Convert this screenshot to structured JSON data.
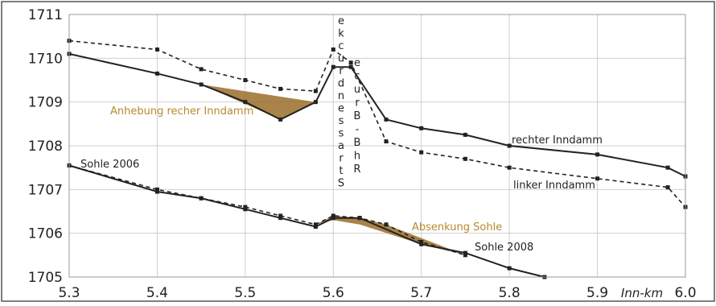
{
  "chart_data": {
    "type": "line",
    "xlabel": "Inn-km",
    "ylabel": "",
    "xlim": [
      5.3,
      6.0
    ],
    "ylim": [
      1705,
      1711
    ],
    "x_ticks": [
      "5.3",
      "5.4",
      "5.5",
      "5.6",
      "5.7",
      "5.8",
      "5.9",
      "6.0"
    ],
    "y_ticks": [
      "1705",
      "1706",
      "1707",
      "1708",
      "1709",
      "1710",
      "1711"
    ],
    "grid": true,
    "series": [
      {
        "name": "rechter Inndamm",
        "style": "solid",
        "color": "#222222",
        "points": [
          [
            5.3,
            1710.1
          ],
          [
            5.4,
            1709.65
          ],
          [
            5.45,
            1709.4
          ],
          [
            5.5,
            1709.0
          ],
          [
            5.54,
            1708.6
          ],
          [
            5.58,
            1709.0
          ],
          [
            5.6,
            1709.8
          ],
          [
            5.62,
            1709.8
          ],
          [
            5.66,
            1708.6
          ],
          [
            5.7,
            1708.4
          ],
          [
            5.75,
            1708.25
          ],
          [
            5.8,
            1708.0
          ],
          [
            5.9,
            1707.8
          ],
          [
            5.98,
            1707.5
          ],
          [
            6.0,
            1707.3
          ]
        ]
      },
      {
        "name": "linker Inndamm",
        "style": "dashed",
        "color": "#222222",
        "points": [
          [
            5.3,
            1710.4
          ],
          [
            5.4,
            1710.2
          ],
          [
            5.45,
            1709.75
          ],
          [
            5.5,
            1709.5
          ],
          [
            5.54,
            1709.3
          ],
          [
            5.58,
            1709.25
          ],
          [
            5.6,
            1710.2
          ],
          [
            5.62,
            1709.9
          ],
          [
            5.66,
            1708.1
          ],
          [
            5.7,
            1707.85
          ],
          [
            5.75,
            1707.7
          ],
          [
            5.8,
            1707.5
          ],
          [
            5.9,
            1707.25
          ],
          [
            5.98,
            1707.05
          ],
          [
            6.0,
            1706.6
          ]
        ]
      },
      {
        "name": "Sohle 2006",
        "style": "dashed",
        "color": "#222222",
        "points": [
          [
            5.3,
            1707.55
          ],
          [
            5.4,
            1707.0
          ],
          [
            5.45,
            1706.8
          ],
          [
            5.5,
            1706.6
          ],
          [
            5.54,
            1706.4
          ],
          [
            5.58,
            1706.2
          ],
          [
            5.6,
            1706.4
          ],
          [
            5.63,
            1706.35
          ],
          [
            5.66,
            1706.2
          ],
          [
            5.7,
            1705.8
          ],
          [
            5.75,
            1705.5
          ]
        ]
      },
      {
        "name": "Sohle 2008",
        "style": "solid",
        "color": "#222222",
        "points": [
          [
            5.3,
            1707.55
          ],
          [
            5.4,
            1706.95
          ],
          [
            5.45,
            1706.8
          ],
          [
            5.5,
            1706.55
          ],
          [
            5.54,
            1706.35
          ],
          [
            5.58,
            1706.15
          ],
          [
            5.6,
            1706.35
          ],
          [
            5.63,
            1706.35
          ],
          [
            5.7,
            1705.75
          ],
          [
            5.75,
            1705.55
          ],
          [
            5.8,
            1705.2
          ],
          [
            5.84,
            1705.0
          ]
        ]
      }
    ],
    "fills": [
      {
        "color": "#9a6d2a",
        "points": [
          [
            5.45,
            1709.4
          ],
          [
            5.58,
            1709.0
          ],
          [
            5.54,
            1708.6
          ]
        ]
      },
      {
        "color": "#9a6d2a",
        "points": [
          [
            5.58,
            1706.2
          ],
          [
            5.6,
            1706.4
          ],
          [
            5.63,
            1706.35
          ],
          [
            5.66,
            1706.2
          ],
          [
            5.75,
            1705.5
          ],
          [
            5.7,
            1705.75
          ],
          [
            5.63,
            1706.2
          ],
          [
            5.6,
            1706.3
          ]
        ]
      }
    ],
    "annotations": [
      {
        "text": "Anhebung recher Inndamm",
        "color": "#b8892e"
      },
      {
        "text": "Absenkung Sohle",
        "color": "#b8892e"
      },
      {
        "text": "rechter Inndamm",
        "color": "#222222"
      },
      {
        "text": "linker Inndamm",
        "color": "#222222"
      },
      {
        "text": "Sohle 2006",
        "color": "#222222"
      },
      {
        "text": "Sohle 2008",
        "color": "#222222"
      }
    ],
    "vertical_labels": [
      {
        "text": "Brückenstrasse",
        "chars": [
          "e",
          "k",
          "c",
          "u",
          "r",
          "d",
          "n",
          "e",
          "s",
          "s",
          "a",
          "r",
          "t",
          "S"
        ]
      },
      {
        "text": "Bahnbrücke",
        "chars": [
          "e",
          "c",
          "u",
          "r",
          "B",
          "-",
          "B",
          "h",
          "R"
        ]
      }
    ]
  }
}
